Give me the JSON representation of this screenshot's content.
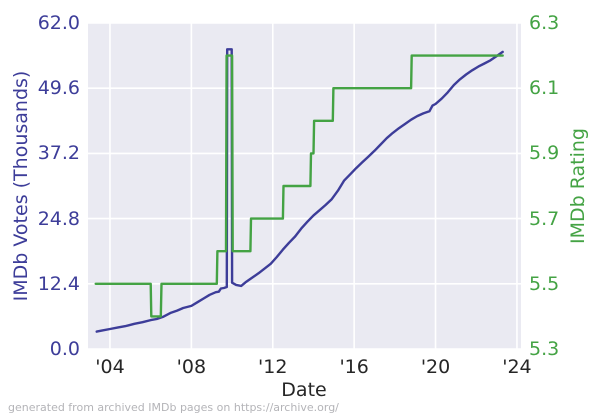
{
  "figure": {
    "footer": "generated from archived IMDb pages on https://archive.org/"
  },
  "chart_data": {
    "type": "line",
    "title": "",
    "xlabel": "Date",
    "ylabel_left": "IMDb Votes (Thousands)",
    "ylabel_right": "IMDb Rating",
    "grid": true,
    "legend_position": "none",
    "xlim": [
      2002.92,
      2024.2
    ],
    "ylim_left": [
      0.0,
      62.0
    ],
    "ylim_right": [
      5.3,
      6.3
    ],
    "xticks": {
      "values": [
        2004,
        2008,
        2012,
        2016,
        2020,
        2024
      ],
      "labels": [
        "'04",
        "'08",
        "'12",
        "'16",
        "'20",
        "'24"
      ]
    },
    "yticks_left": {
      "values": [
        0.0,
        12.4,
        24.8,
        37.2,
        49.6,
        62.0
      ],
      "labels": [
        "0.0",
        "12.4",
        "24.8",
        "37.2",
        "49.6",
        "62.0"
      ]
    },
    "yticks_right": {
      "values": [
        5.3,
        5.5,
        5.7,
        5.9,
        6.1,
        6.3
      ],
      "labels": [
        "5.3",
        "5.5",
        "5.7",
        "5.9",
        "6.1",
        "6.3"
      ]
    },
    "colors": {
      "votes_line": "#3d3d99",
      "rating_line": "#44a344",
      "plot_bg": "#eaeaf2",
      "gridline": "#ffffff",
      "xtick_text": "#262626",
      "footer_text": "#b4b4b8"
    },
    "series": [
      {
        "name": "IMDb Votes (Thousands)",
        "axis": "left",
        "color": "#3d3d99",
        "points": [
          [
            2003.35,
            3.3
          ],
          [
            2003.6,
            3.5
          ],
          [
            2004.0,
            3.8
          ],
          [
            2004.4,
            4.1
          ],
          [
            2004.8,
            4.4
          ],
          [
            2005.2,
            4.8
          ],
          [
            2005.6,
            5.1
          ],
          [
            2006.0,
            5.5
          ],
          [
            2006.3,
            5.7
          ],
          [
            2006.6,
            6.1
          ],
          [
            2007.0,
            6.9
          ],
          [
            2007.3,
            7.3
          ],
          [
            2007.6,
            7.8
          ],
          [
            2008.0,
            8.2
          ],
          [
            2008.3,
            8.9
          ],
          [
            2008.6,
            9.6
          ],
          [
            2008.9,
            10.3
          ],
          [
            2009.2,
            10.8
          ],
          [
            2009.35,
            10.9
          ],
          [
            2009.45,
            11.5
          ],
          [
            2009.6,
            11.6
          ],
          [
            2009.74,
            11.8
          ],
          [
            2009.76,
            57.0
          ],
          [
            2009.98,
            57.0
          ],
          [
            2010.0,
            12.6
          ],
          [
            2010.2,
            12.2
          ],
          [
            2010.45,
            12.0
          ],
          [
            2010.7,
            12.8
          ],
          [
            2011.0,
            13.6
          ],
          [
            2011.3,
            14.4
          ],
          [
            2011.6,
            15.3
          ],
          [
            2011.9,
            16.2
          ],
          [
            2012.2,
            17.5
          ],
          [
            2012.5,
            18.9
          ],
          [
            2012.8,
            20.2
          ],
          [
            2013.1,
            21.4
          ],
          [
            2013.4,
            22.9
          ],
          [
            2013.7,
            24.2
          ],
          [
            2014.0,
            25.4
          ],
          [
            2014.3,
            26.4
          ],
          [
            2014.6,
            27.4
          ],
          [
            2014.9,
            28.5
          ],
          [
            2015.2,
            30.1
          ],
          [
            2015.5,
            32.0
          ],
          [
            2015.8,
            33.2
          ],
          [
            2016.1,
            34.4
          ],
          [
            2016.4,
            35.5
          ],
          [
            2016.7,
            36.6
          ],
          [
            2017.0,
            37.7
          ],
          [
            2017.3,
            38.9
          ],
          [
            2017.6,
            40.1
          ],
          [
            2017.9,
            41.1
          ],
          [
            2018.2,
            42.0
          ],
          [
            2018.5,
            42.8
          ],
          [
            2018.8,
            43.6
          ],
          [
            2019.1,
            44.3
          ],
          [
            2019.4,
            44.8
          ],
          [
            2019.7,
            45.2
          ],
          [
            2019.85,
            46.3
          ],
          [
            2020.0,
            46.6
          ],
          [
            2020.3,
            47.6
          ],
          [
            2020.6,
            48.8
          ],
          [
            2020.9,
            50.2
          ],
          [
            2021.2,
            51.3
          ],
          [
            2021.5,
            52.2
          ],
          [
            2021.8,
            53.0
          ],
          [
            2022.1,
            53.7
          ],
          [
            2022.4,
            54.3
          ],
          [
            2022.7,
            54.9
          ],
          [
            2023.0,
            55.7
          ],
          [
            2023.15,
            56.1
          ],
          [
            2023.3,
            56.5
          ]
        ]
      },
      {
        "name": "IMDb Rating",
        "axis": "right",
        "color": "#44a344",
        "points": [
          [
            2003.3,
            5.5
          ],
          [
            2006.0,
            5.5
          ],
          [
            2006.03,
            5.4
          ],
          [
            2006.5,
            5.4
          ],
          [
            2006.53,
            5.5
          ],
          [
            2009.25,
            5.5
          ],
          [
            2009.28,
            5.6
          ],
          [
            2009.7,
            5.6
          ],
          [
            2009.73,
            6.2
          ],
          [
            2010.0,
            6.2
          ],
          [
            2010.03,
            5.6
          ],
          [
            2010.9,
            5.6
          ],
          [
            2010.93,
            5.7
          ],
          [
            2012.5,
            5.7
          ],
          [
            2012.53,
            5.8
          ],
          [
            2013.85,
            5.8
          ],
          [
            2013.88,
            5.9
          ],
          [
            2014.0,
            5.9
          ],
          [
            2014.03,
            6.0
          ],
          [
            2014.95,
            6.0
          ],
          [
            2014.98,
            6.1
          ],
          [
            2018.8,
            6.1
          ],
          [
            2018.83,
            6.2
          ],
          [
            2023.3,
            6.2
          ]
        ]
      }
    ]
  }
}
